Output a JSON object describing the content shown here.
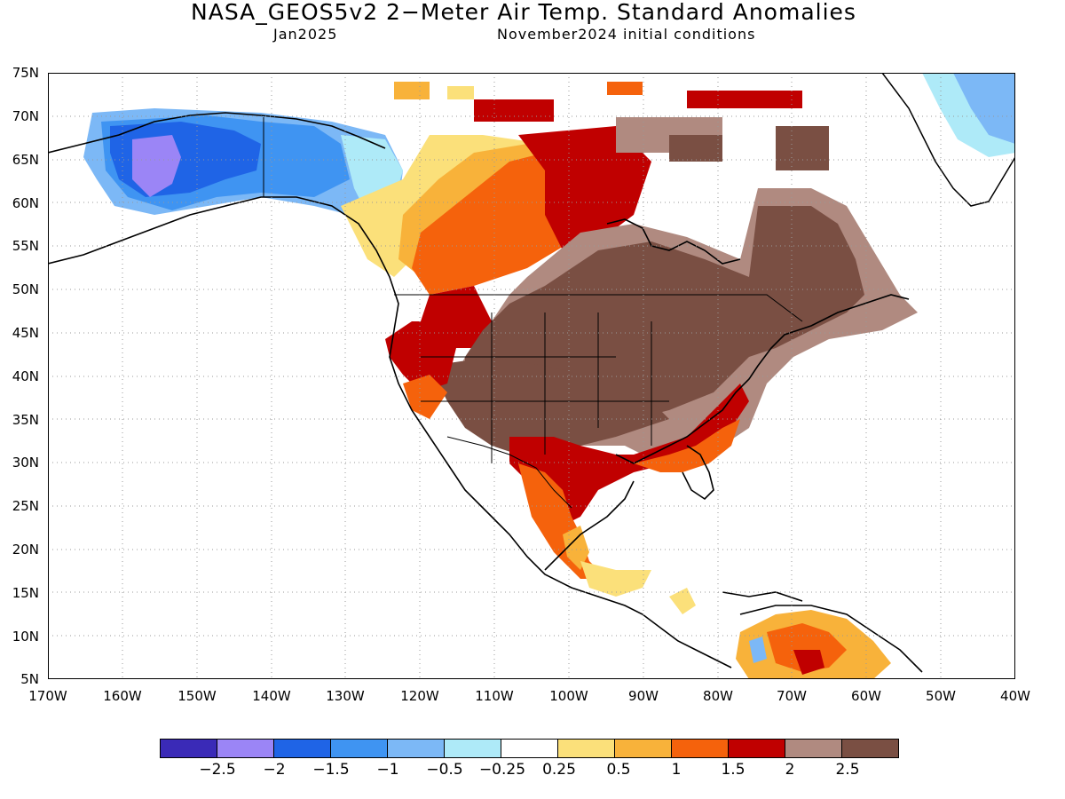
{
  "header": {
    "title": "NASA_GEOS5v2 2−Meter Air Temp. Standard Anomalies",
    "valid_month": "Jan2025",
    "initial_conditions": "November2024 initial conditions"
  },
  "axes": {
    "lat_labels": [
      "75N",
      "70N",
      "65N",
      "60N",
      "55N",
      "50N",
      "45N",
      "40N",
      "35N",
      "30N",
      "25N",
      "20N",
      "15N",
      "10N",
      "5N"
    ],
    "lon_labels": [
      "170W",
      "160W",
      "150W",
      "140W",
      "130W",
      "120W",
      "110W",
      "100W",
      "90W",
      "80W",
      "70W",
      "60W",
      "50W",
      "40W"
    ]
  },
  "legend": {
    "colors": [
      "#3a2ab7",
      "#9b85f6",
      "#1f64e6",
      "#3f94f2",
      "#7cb8f6",
      "#aeeaf8",
      "#ffffff",
      "#fbe07a",
      "#f8b23a",
      "#f5620c",
      "#c00000",
      "#b08a80",
      "#7a4f43"
    ],
    "labels": [
      "−2.5",
      "−2",
      "−1.5",
      "−1",
      "−0.5",
      "−0.25",
      "0.25",
      "0.5",
      "1",
      "1.5",
      "2",
      "2.5"
    ]
  }
}
